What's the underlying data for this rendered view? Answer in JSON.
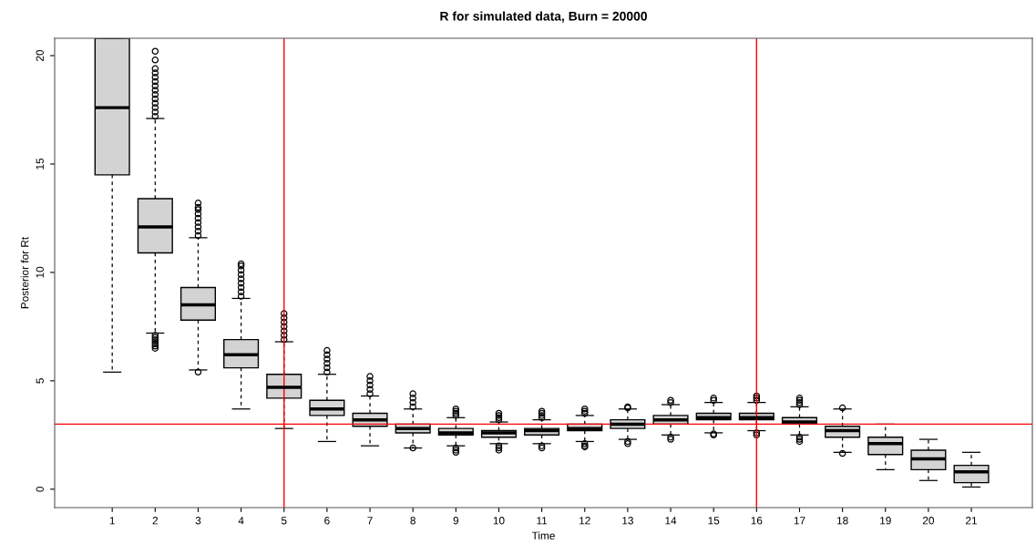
{
  "chart_data": {
    "type": "box",
    "title": "R for simulated data, Burn = 20000",
    "xlabel": "Time",
    "ylabel": "Posterior for Rt",
    "categories": [
      "1",
      "2",
      "3",
      "4",
      "5",
      "6",
      "7",
      "8",
      "9",
      "10",
      "11",
      "12",
      "13",
      "14",
      "15",
      "16",
      "17",
      "18",
      "19",
      "20",
      "21"
    ],
    "ylim": [
      -0.85,
      20.8
    ],
    "yticks": [
      0,
      5,
      10,
      15,
      20
    ],
    "grid": false,
    "color": "#d3d3d3",
    "boxes": [
      {
        "low": 5.4,
        "q1": 14.5,
        "median": 17.6,
        "q3": 20.8,
        "high": 20.8
      },
      {
        "low": 7.2,
        "q1": 10.9,
        "median": 12.1,
        "q3": 13.4,
        "high": 17.1,
        "outliers": [
          17.2,
          17.4,
          17.6,
          17.8,
          18.0,
          18.2,
          18.4,
          18.6,
          18.8,
          19.0,
          19.2,
          19.4,
          19.8,
          20.2,
          7.1,
          7.0,
          6.9,
          6.8,
          6.7,
          6.6,
          6.5
        ]
      },
      {
        "low": 5.5,
        "q1": 7.8,
        "median": 8.5,
        "q3": 9.3,
        "high": 11.6,
        "outliers": [
          11.7,
          11.9,
          12.1,
          12.3,
          12.5,
          12.7,
          12.9,
          13.0,
          13.2,
          5.4
        ]
      },
      {
        "low": 3.7,
        "q1": 5.6,
        "median": 6.2,
        "q3": 6.9,
        "high": 8.8,
        "outliers": [
          8.9,
          9.1,
          9.3,
          9.5,
          9.7,
          9.9,
          10.1,
          10.3,
          10.4
        ]
      },
      {
        "low": 2.8,
        "q1": 4.2,
        "median": 4.7,
        "q3": 5.3,
        "high": 6.8,
        "outliers": [
          6.9,
          7.1,
          7.3,
          7.5,
          7.7,
          7.9,
          8.1
        ]
      },
      {
        "low": 2.2,
        "q1": 3.4,
        "median": 3.7,
        "q3": 4.1,
        "high": 5.3,
        "outliers": [
          5.4,
          5.6,
          5.8,
          6.0,
          6.2,
          6.4
        ]
      },
      {
        "low": 2.0,
        "q1": 2.9,
        "median": 3.2,
        "q3": 3.5,
        "high": 4.3,
        "outliers": [
          4.4,
          4.6,
          4.8,
          5.0,
          5.2
        ]
      },
      {
        "low": 1.9,
        "q1": 2.6,
        "median": 2.8,
        "q3": 3.0,
        "high": 3.7,
        "outliers": [
          3.8,
          4.0,
          4.2,
          4.4,
          1.9
        ]
      },
      {
        "low": 2.0,
        "q1": 2.5,
        "median": 2.6,
        "q3": 2.8,
        "high": 3.3,
        "outliers": [
          3.4,
          3.5,
          3.6,
          3.7,
          1.9,
          1.8,
          1.7
        ]
      },
      {
        "low": 2.1,
        "q1": 2.4,
        "median": 2.6,
        "q3": 2.7,
        "high": 3.1,
        "outliers": [
          3.2,
          3.3,
          3.4,
          3.5,
          2.0,
          1.9,
          1.8
        ]
      },
      {
        "low": 2.1,
        "q1": 2.5,
        "median": 2.7,
        "q3": 2.8,
        "high": 3.2,
        "outliers": [
          3.3,
          3.4,
          3.5,
          3.6,
          2.0,
          1.9
        ]
      },
      {
        "low": 2.2,
        "q1": 2.7,
        "median": 2.8,
        "q3": 3.0,
        "high": 3.4,
        "outliers": [
          3.5,
          3.6,
          3.7,
          2.1,
          2.0,
          1.95
        ]
      },
      {
        "low": 2.3,
        "q1": 2.8,
        "median": 3.0,
        "q3": 3.2,
        "high": 3.7,
        "outliers": [
          3.75,
          3.8,
          2.2,
          2.1
        ]
      },
      {
        "low": 2.5,
        "q1": 3.0,
        "median": 3.2,
        "q3": 3.4,
        "high": 3.9,
        "outliers": [
          4.0,
          4.1,
          2.4,
          2.3
        ]
      },
      {
        "low": 2.6,
        "q1": 3.2,
        "median": 3.3,
        "q3": 3.5,
        "high": 4.0,
        "outliers": [
          4.1,
          4.2,
          2.55,
          2.5
        ]
      },
      {
        "low": 2.7,
        "q1": 3.2,
        "median": 3.3,
        "q3": 3.5,
        "high": 4.0,
        "outliers": [
          4.1,
          4.2,
          4.3,
          2.6,
          2.5
        ]
      },
      {
        "low": 2.5,
        "q1": 3.0,
        "median": 3.1,
        "q3": 3.3,
        "high": 3.8,
        "outliers": [
          3.9,
          4.0,
          4.1,
          4.2,
          2.4,
          2.3,
          2.2
        ]
      },
      {
        "low": 1.7,
        "q1": 2.4,
        "median": 2.7,
        "q3": 2.9,
        "high": 3.7,
        "outliers": [
          3.75,
          1.65
        ]
      },
      {
        "low": 0.9,
        "q1": 1.6,
        "median": 2.1,
        "q3": 2.4,
        "high": 3.0
      },
      {
        "low": 0.4,
        "q1": 0.9,
        "median": 1.4,
        "q3": 1.8,
        "high": 2.3
      },
      {
        "low": 0.1,
        "q1": 0.3,
        "median": 0.8,
        "q3": 1.1,
        "high": 1.7
      }
    ],
    "ref_lines": [
      {
        "axis": "x",
        "value": "5",
        "color": "#ff0000"
      },
      {
        "axis": "x",
        "value": "16",
        "color": "#ff0000"
      },
      {
        "axis": "y",
        "value": 3,
        "color": "#ff0000"
      }
    ]
  }
}
